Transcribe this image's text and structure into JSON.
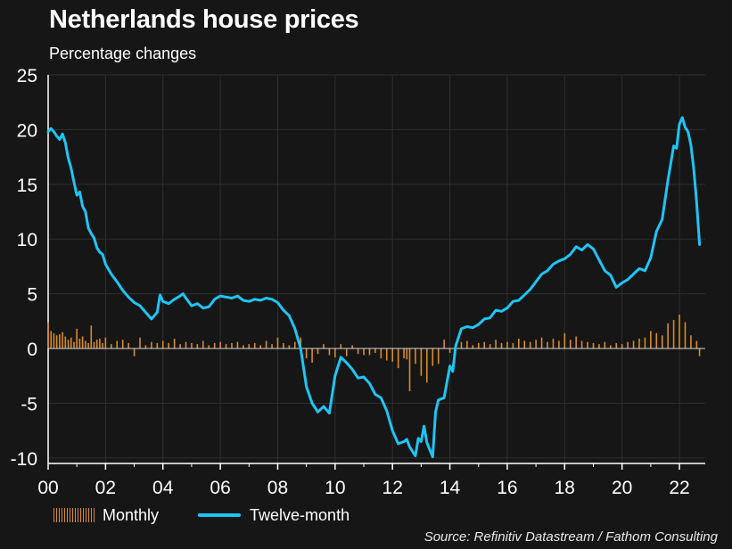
{
  "chart_data": {
    "type": "line",
    "title": "Netherlands house prices",
    "subtitle": "Percentage changes",
    "source": "Source: Refinitiv Datastream / Fathom Consulting",
    "y_ticks": [
      25,
      20,
      15,
      10,
      5,
      0,
      -5,
      -10
    ],
    "x_tick_labels": [
      "00",
      "02",
      "04",
      "06",
      "08",
      "10",
      "12",
      "14",
      "16",
      "18",
      "20",
      "22"
    ],
    "x_tick_years": [
      2000,
      2002,
      2004,
      2006,
      2008,
      2010,
      2012,
      2014,
      2016,
      2018,
      2020,
      2022
    ],
    "xlim": [
      2000.0,
      2022.9
    ],
    "ylim": [
      -10.5,
      25
    ],
    "grid": true,
    "legend_position": "bottom-left",
    "series": [
      {
        "name": "Twelve-month",
        "kind": "line",
        "color": "#1ec5f5",
        "x": [
          2000.0,
          2000.1,
          2000.2,
          2000.3,
          2000.4,
          2000.5,
          2000.6,
          2000.7,
          2000.8,
          2000.9,
          2001.0,
          2001.1,
          2001.2,
          2001.3,
          2001.4,
          2001.5,
          2001.6,
          2001.7,
          2001.8,
          2001.9,
          2002.0,
          2002.2,
          2002.4,
          2002.6,
          2002.8,
          2003.0,
          2003.2,
          2003.4,
          2003.6,
          2003.8,
          2003.9,
          2004.0,
          2004.2,
          2004.4,
          2004.6,
          2004.7,
          2004.8,
          2005.0,
          2005.2,
          2005.4,
          2005.6,
          2005.8,
          2006.0,
          2006.2,
          2006.4,
          2006.6,
          2006.8,
          2007.0,
          2007.2,
          2007.4,
          2007.6,
          2007.8,
          2008.0,
          2008.2,
          2008.4,
          2008.6,
          2008.8,
          2009.0,
          2009.2,
          2009.4,
          2009.6,
          2009.8,
          2010.0,
          2010.2,
          2010.4,
          2010.6,
          2010.8,
          2011.0,
          2011.2,
          2011.4,
          2011.6,
          2011.8,
          2012.0,
          2012.2,
          2012.4,
          2012.5,
          2012.6,
          2012.8,
          2012.9,
          2013.0,
          2013.1,
          2013.2,
          2013.4,
          2013.5,
          2013.6,
          2013.8,
          2014.0,
          2014.1,
          2014.2,
          2014.4,
          2014.6,
          2014.8,
          2015.0,
          2015.2,
          2015.4,
          2015.6,
          2015.8,
          2016.0,
          2016.2,
          2016.4,
          2016.6,
          2016.8,
          2017.0,
          2017.2,
          2017.4,
          2017.6,
          2017.8,
          2018.0,
          2018.2,
          2018.4,
          2018.6,
          2018.8,
          2019.0,
          2019.2,
          2019.4,
          2019.6,
          2019.8,
          2020.0,
          2020.2,
          2020.4,
          2020.6,
          2020.8,
          2021.0,
          2021.2,
          2021.4,
          2021.6,
          2021.8,
          2021.9,
          2022.0,
          2022.1,
          2022.2,
          2022.3,
          2022.4,
          2022.5,
          2022.6,
          2022.7
        ],
        "values": [
          19.8,
          20.1,
          19.8,
          19.4,
          19.1,
          19.6,
          18.8,
          17.4,
          16.5,
          15.2,
          14.0,
          14.3,
          13.0,
          12.5,
          11.0,
          10.5,
          10.1,
          9.2,
          8.8,
          8.6,
          7.7,
          6.8,
          6.1,
          5.3,
          4.7,
          4.2,
          3.9,
          3.3,
          2.7,
          3.3,
          4.9,
          4.3,
          4.1,
          4.5,
          4.8,
          5.0,
          4.6,
          3.9,
          4.1,
          3.7,
          3.8,
          4.5,
          4.8,
          4.7,
          4.6,
          4.8,
          4.4,
          4.3,
          4.5,
          4.4,
          4.6,
          4.5,
          4.2,
          3.5,
          3.0,
          1.8,
          0.0,
          -3.5,
          -5.0,
          -5.8,
          -5.3,
          -5.9,
          -2.5,
          -0.8,
          -1.3,
          -1.9,
          -2.7,
          -2.6,
          -3.2,
          -4.2,
          -4.5,
          -5.7,
          -7.5,
          -8.7,
          -8.5,
          -8.3,
          -9.0,
          -9.8,
          -8.2,
          -8.5,
          -7.1,
          -8.6,
          -9.9,
          -5.8,
          -4.7,
          -4.5,
          -1.6,
          -2.1,
          0.2,
          1.8,
          2.0,
          1.9,
          2.2,
          2.7,
          2.8,
          3.5,
          3.4,
          3.7,
          4.3,
          4.4,
          4.9,
          5.4,
          6.1,
          6.8,
          7.1,
          7.7,
          8.0,
          8.2,
          8.6,
          9.3,
          9.0,
          9.5,
          9.1,
          8.1,
          7.1,
          6.7,
          5.6,
          6.0,
          6.3,
          6.8,
          7.3,
          7.1,
          8.3,
          10.7,
          11.8,
          15.4,
          18.5,
          18.3,
          20.5,
          21.1,
          20.2,
          19.8,
          18.6,
          16.4,
          13.4,
          9.5
        ]
      },
      {
        "name": "Monthly",
        "kind": "bar",
        "color": "#d98c22",
        "x": [
          2000.0,
          2000.1,
          2000.2,
          2000.3,
          2000.4,
          2000.5,
          2000.6,
          2000.7,
          2000.8,
          2000.9,
          2001.0,
          2001.1,
          2001.2,
          2001.3,
          2001.4,
          2001.5,
          2001.6,
          2001.7,
          2001.8,
          2001.9,
          2002.0,
          2002.2,
          2002.4,
          2002.6,
          2002.8,
          2003.0,
          2003.2,
          2003.4,
          2003.6,
          2003.8,
          2004.0,
          2004.2,
          2004.4,
          2004.6,
          2004.8,
          2005.0,
          2005.2,
          2005.4,
          2005.6,
          2005.8,
          2006.0,
          2006.2,
          2006.4,
          2006.6,
          2006.8,
          2007.0,
          2007.2,
          2007.4,
          2007.6,
          2007.8,
          2008.0,
          2008.2,
          2008.4,
          2008.6,
          2008.8,
          2009.0,
          2009.2,
          2009.4,
          2009.6,
          2009.8,
          2010.0,
          2010.2,
          2010.4,
          2010.6,
          2010.8,
          2011.0,
          2011.2,
          2011.4,
          2011.6,
          2011.8,
          2012.0,
          2012.2,
          2012.4,
          2012.5,
          2012.6,
          2012.8,
          2013.0,
          2013.2,
          2013.4,
          2013.6,
          2013.8,
          2014.0,
          2014.2,
          2014.4,
          2014.6,
          2014.8,
          2015.0,
          2015.2,
          2015.4,
          2015.6,
          2015.8,
          2016.0,
          2016.2,
          2016.4,
          2016.6,
          2016.8,
          2017.0,
          2017.2,
          2017.4,
          2017.6,
          2017.8,
          2018.0,
          2018.2,
          2018.4,
          2018.6,
          2018.8,
          2019.0,
          2019.2,
          2019.4,
          2019.6,
          2019.8,
          2020.0,
          2020.2,
          2020.4,
          2020.6,
          2020.8,
          2021.0,
          2021.2,
          2021.4,
          2021.6,
          2021.8,
          2022.0,
          2022.2,
          2022.4,
          2022.6,
          2022.7
        ],
        "values": [
          2.4,
          1.6,
          1.4,
          1.2,
          1.3,
          1.5,
          1.1,
          0.8,
          1.0,
          0.6,
          1.8,
          0.9,
          1.1,
          0.7,
          0.5,
          2.1,
          0.6,
          0.8,
          0.9,
          0.5,
          1.0,
          0.4,
          0.7,
          0.8,
          0.5,
          -0.7,
          1.0,
          0.3,
          0.6,
          0.5,
          0.7,
          0.5,
          0.9,
          0.4,
          0.6,
          0.5,
          0.4,
          0.7,
          0.3,
          0.5,
          0.6,
          0.4,
          0.5,
          0.6,
          0.3,
          0.4,
          0.5,
          0.3,
          0.7,
          0.4,
          1.0,
          0.5,
          0.3,
          0.6,
          1.0,
          -0.9,
          -1.3,
          -0.5,
          0.4,
          -0.6,
          -0.8,
          0.4,
          -0.7,
          0.3,
          -0.5,
          -0.6,
          -0.6,
          -0.4,
          -0.9,
          -1.1,
          -1.2,
          -1.8,
          -0.9,
          -1.0,
          -3.9,
          -1.4,
          -2.5,
          -3.1,
          -1.6,
          -1.4,
          0.8,
          -0.4,
          0.4,
          0.6,
          0.7,
          0.3,
          0.5,
          0.6,
          0.4,
          0.8,
          0.5,
          0.6,
          0.5,
          0.9,
          0.7,
          0.6,
          0.8,
          1.0,
          0.6,
          0.9,
          0.7,
          1.4,
          0.8,
          1.1,
          0.7,
          0.6,
          0.5,
          0.4,
          0.6,
          0.3,
          0.5,
          0.4,
          0.6,
          0.7,
          0.9,
          1.0,
          1.6,
          1.4,
          1.2,
          2.3,
          2.6,
          3.1,
          2.4,
          1.2,
          0.7,
          -0.7
        ]
      }
    ]
  }
}
